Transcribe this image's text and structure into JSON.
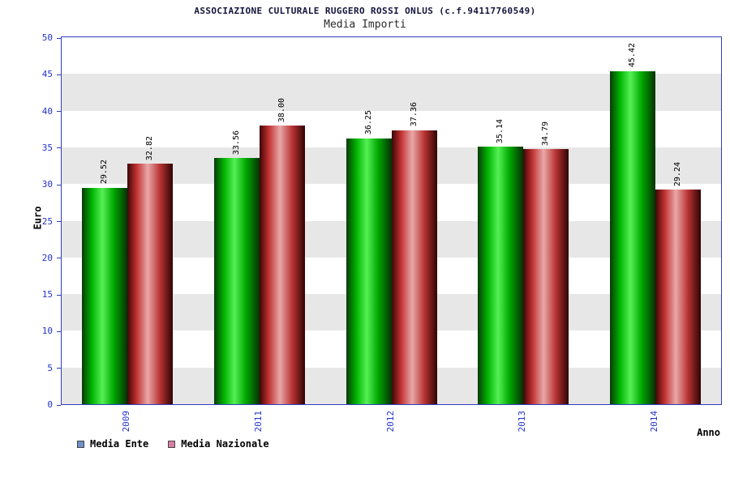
{
  "chart_data": {
    "type": "bar",
    "title": "ASSOCIAZIONE CULTURALE RUGGERO ROSSI ONLUS (c.f.94117760549)",
    "subtitle": "Media Importi",
    "categories": [
      "2009",
      "2011",
      "2012",
      "2013",
      "2014"
    ],
    "series": [
      {
        "name": "Media Ente",
        "values": [
          29.52,
          33.56,
          36.25,
          35.14,
          45.42
        ],
        "bar_color": "#00c000",
        "legend_color": "#7191c8"
      },
      {
        "name": "Media Nazionale",
        "values": [
          32.82,
          38.0,
          37.36,
          34.79,
          29.24
        ],
        "bar_color": "#c43333",
        "legend_color": "#d77fa6"
      }
    ],
    "xlabel": "Anno",
    "ylabel": "Euro",
    "ylim": [
      0,
      50
    ],
    "ytick_step": 5,
    "value_label_decimals": 2,
    "legend_position": "bottom-left",
    "grid": "alternating-horizontal-bands",
    "band_color": "#e7e7e7",
    "axis_color": "#2233cc"
  }
}
